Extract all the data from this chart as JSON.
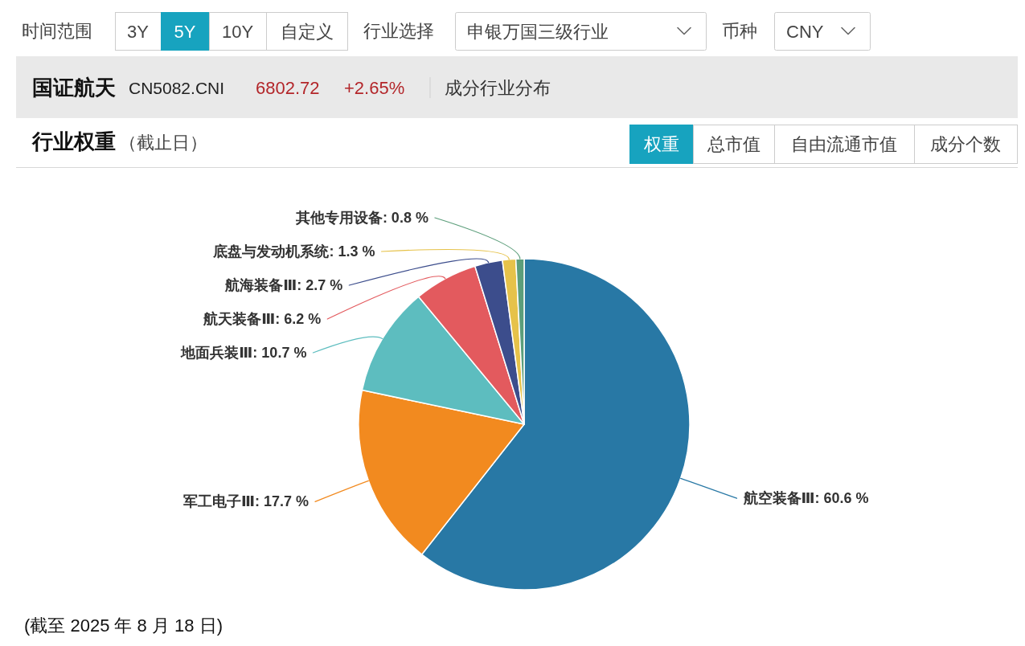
{
  "chart_data": {
    "type": "pie",
    "title": "行业权重",
    "subtitle": "（截止日）",
    "categories": [
      "航空装备Ⅲ",
      "军工电子Ⅲ",
      "地面兵装Ⅲ",
      "航天装备Ⅲ",
      "航海装备Ⅲ",
      "底盘与发动机系统",
      "其他专用设备"
    ],
    "values": [
      60.6,
      17.7,
      10.7,
      6.2,
      2.7,
      1.3,
      0.8
    ],
    "colors": [
      "#2878a5",
      "#f28a1f",
      "#5dbdbf",
      "#e35a5e",
      "#3c4d8c",
      "#e6c24a",
      "#5c9e7b"
    ],
    "value_labels": [
      "60.6 %",
      "17.7 %",
      "10.7 %",
      "6.2 %",
      "2.7 %",
      "1.3 %",
      "0.8 %"
    ],
    "annotations": [
      "时间范围",
      "3Y",
      "5Y",
      "10Y",
      "自定义",
      "行业选择",
      "申银万国三级行业",
      "币种",
      "CNY",
      "国证航天",
      "CN5082.CNI",
      "6802.72",
      "+2.65%",
      "成分行业分布",
      "权重",
      "总市值",
      "自由流通市值",
      "成分个数",
      "(截至 2025 年 8 月 18 日)"
    ]
  }
}
